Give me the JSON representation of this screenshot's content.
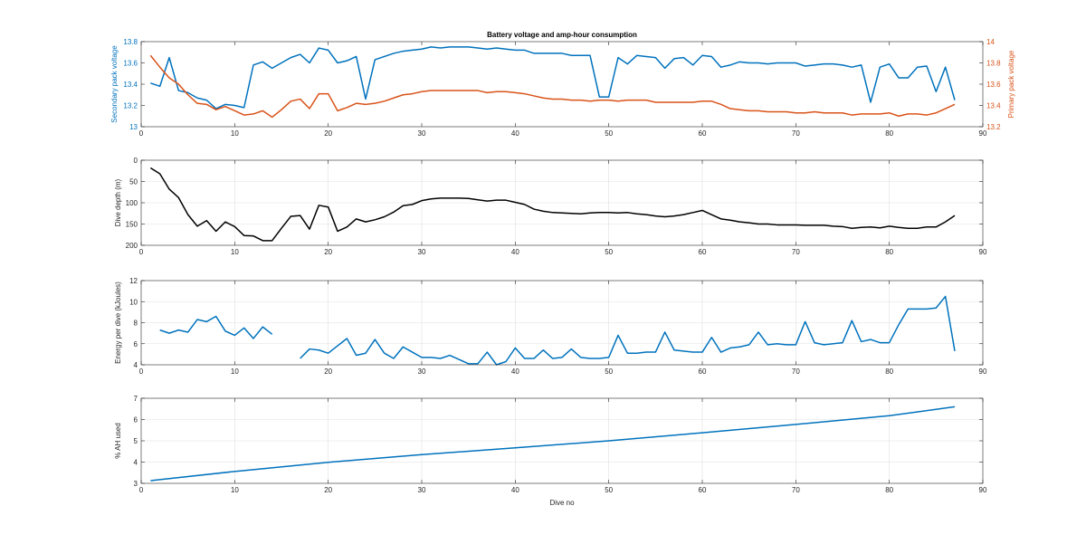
{
  "figure": {
    "title": "Battery voltage and amp-hour consumption",
    "xlabel": "Dive no",
    "colors": {
      "blue": "#0072BD",
      "orange": "#D95319",
      "black": "#000000"
    }
  },
  "chart_data": [
    {
      "type": "line",
      "title": "Battery voltage and amp-hour consumption",
      "xlabel": "",
      "xlim": [
        0,
        90
      ],
      "xticks": [
        0,
        10,
        20,
        30,
        40,
        50,
        60,
        70,
        80,
        90
      ],
      "ylabel": "Secondary pack voltage",
      "ylim": [
        13,
        13.8
      ],
      "yticks": [
        13,
        13.2,
        13.4,
        13.6,
        13.8
      ],
      "ylabel_right": "Primary pack voltage",
      "ylim_right": [
        13.2,
        14
      ],
      "yticks_right": [
        13.2,
        13.4,
        13.6,
        13.8,
        14
      ],
      "grid": false,
      "series": [
        {
          "axis": "left",
          "color": "#0072BD",
          "x": [
            1,
            2,
            3,
            4,
            5,
            6,
            7,
            8,
            9,
            10,
            11,
            12,
            13,
            14,
            15,
            16,
            17,
            18,
            19,
            20,
            21,
            22,
            23,
            24,
            25,
            26,
            27,
            28,
            29,
            30,
            31,
            32,
            33,
            34,
            35,
            36,
            37,
            38,
            39,
            40,
            41,
            42,
            43,
            44,
            45,
            46,
            47,
            48,
            49,
            50,
            51,
            52,
            53,
            54,
            55,
            56,
            57,
            58,
            59,
            60,
            61,
            62,
            63,
            64,
            65,
            66,
            67,
            68,
            69,
            70,
            71,
            72,
            73,
            74,
            75,
            76,
            77,
            78,
            79,
            80,
            81,
            82,
            83,
            84,
            85,
            86,
            87
          ],
          "y": [
            13.41,
            13.38,
            13.65,
            13.34,
            13.32,
            13.27,
            13.25,
            13.17,
            13.21,
            13.2,
            13.18,
            13.58,
            13.61,
            13.55,
            13.6,
            13.65,
            13.68,
            13.6,
            13.74,
            13.72,
            13.6,
            13.62,
            13.66,
            13.26,
            13.63,
            13.66,
            13.69,
            13.71,
            13.72,
            13.73,
            13.75,
            13.74,
            13.75,
            13.75,
            13.75,
            13.74,
            13.73,
            13.74,
            13.73,
            13.72,
            13.72,
            13.69,
            13.69,
            13.69,
            13.69,
            13.67,
            13.67,
            13.67,
            13.28,
            13.28,
            13.65,
            13.59,
            13.67,
            13.66,
            13.65,
            13.55,
            13.64,
            13.65,
            13.58,
            13.67,
            13.66,
            13.56,
            13.58,
            13.61,
            13.6,
            13.6,
            13.59,
            13.6,
            13.6,
            13.6,
            13.57,
            13.58,
            13.59,
            13.59,
            13.58,
            13.56,
            13.58,
            13.23,
            13.56,
            13.59,
            13.46,
            13.46,
            13.56,
            13.57,
            13.33,
            13.56,
            13.25
          ]
        },
        {
          "axis": "right",
          "color": "#D95319",
          "x": [
            1,
            2,
            3,
            4,
            5,
            6,
            7,
            8,
            9,
            10,
            11,
            12,
            13,
            14,
            15,
            16,
            17,
            18,
            19,
            20,
            21,
            22,
            23,
            24,
            25,
            26,
            27,
            28,
            29,
            30,
            31,
            32,
            33,
            34,
            35,
            36,
            37,
            38,
            39,
            40,
            41,
            42,
            43,
            44,
            45,
            46,
            47,
            48,
            49,
            50,
            51,
            52,
            53,
            54,
            55,
            56,
            57,
            58,
            59,
            60,
            61,
            62,
            63,
            64,
            65,
            66,
            67,
            68,
            69,
            70,
            71,
            72,
            73,
            74,
            75,
            76,
            77,
            78,
            79,
            80,
            81,
            82,
            83,
            84,
            85,
            86,
            87
          ],
          "y": [
            13.87,
            13.76,
            13.66,
            13.6,
            13.5,
            13.42,
            13.41,
            13.36,
            13.39,
            13.35,
            13.31,
            13.32,
            13.35,
            13.29,
            13.36,
            13.44,
            13.46,
            13.37,
            13.51,
            13.51,
            13.35,
            13.38,
            13.42,
            13.41,
            13.42,
            13.44,
            13.47,
            13.5,
            13.51,
            13.53,
            13.54,
            13.54,
            13.54,
            13.54,
            13.54,
            13.54,
            13.52,
            13.53,
            13.53,
            13.52,
            13.51,
            13.49,
            13.47,
            13.46,
            13.46,
            13.45,
            13.45,
            13.44,
            13.45,
            13.45,
            13.44,
            13.45,
            13.45,
            13.45,
            13.43,
            13.43,
            13.43,
            13.43,
            13.43,
            13.44,
            13.44,
            13.41,
            13.37,
            13.36,
            13.35,
            13.35,
            13.34,
            13.34,
            13.34,
            13.33,
            13.33,
            13.34,
            13.33,
            13.33,
            13.33,
            13.31,
            13.32,
            13.32,
            13.32,
            13.33,
            13.3,
            13.32,
            13.32,
            13.31,
            13.33,
            13.37,
            13.41
          ]
        }
      ]
    },
    {
      "type": "line",
      "xlim": [
        0,
        90
      ],
      "xticks": [
        0,
        10,
        20,
        30,
        40,
        50,
        60,
        70,
        80,
        90
      ],
      "ylabel": "Dive depth (m)",
      "ylim": [
        0,
        200
      ],
      "yreversed": true,
      "yticks": [
        0,
        50,
        100,
        150,
        200
      ],
      "grid": true,
      "series": [
        {
          "color": "#000000",
          "x": [
            1,
            2,
            3,
            4,
            5,
            6,
            7,
            8,
            9,
            10,
            11,
            12,
            13,
            14,
            15,
            16,
            17,
            18,
            19,
            20,
            21,
            22,
            23,
            24,
            25,
            26,
            27,
            28,
            29,
            30,
            31,
            32,
            33,
            34,
            35,
            36,
            37,
            38,
            39,
            40,
            41,
            42,
            43,
            44,
            45,
            46,
            47,
            48,
            49,
            50,
            51,
            52,
            53,
            54,
            55,
            56,
            57,
            58,
            59,
            60,
            61,
            62,
            63,
            64,
            65,
            66,
            67,
            68,
            69,
            70,
            71,
            72,
            73,
            74,
            75,
            76,
            77,
            78,
            79,
            80,
            81,
            82,
            83,
            84,
            85,
            86,
            87
          ],
          "y": [
            18,
            32,
            68,
            88,
            128,
            155,
            142,
            167,
            145,
            156,
            177,
            178,
            189,
            189,
            160,
            132,
            130,
            162,
            106,
            110,
            167,
            157,
            138,
            145,
            140,
            133,
            122,
            107,
            104,
            95,
            91,
            89,
            89,
            89,
            90,
            93,
            96,
            94,
            94,
            99,
            104,
            115,
            120,
            123,
            124,
            125,
            126,
            124,
            123,
            123,
            124,
            123,
            126,
            128,
            131,
            133,
            131,
            128,
            123,
            118,
            128,
            138,
            141,
            145,
            147,
            150,
            150,
            152,
            152,
            152,
            153,
            153,
            153,
            155,
            156,
            160,
            158,
            157,
            159,
            155,
            158,
            160,
            160,
            157,
            157,
            145,
            130
          ]
        }
      ]
    },
    {
      "type": "line",
      "xlim": [
        0,
        90
      ],
      "xticks": [
        0,
        10,
        20,
        30,
        40,
        50,
        60,
        70,
        80,
        90
      ],
      "ylabel": "Energy per dive (kJoules)",
      "ylim": [
        4,
        12
      ],
      "yticks": [
        4,
        6,
        8,
        10,
        12
      ],
      "grid": true,
      "series": [
        {
          "color": "#0072BD",
          "x": [
            2,
            3,
            4,
            5,
            6,
            7,
            8,
            9,
            10,
            11,
            12,
            13,
            14,
            null,
            17,
            18,
            19,
            20,
            21,
            22,
            23,
            24,
            25,
            26,
            27,
            28,
            29,
            30,
            31,
            32,
            33,
            34,
            35,
            36,
            37,
            38,
            39,
            40,
            41,
            42,
            43,
            44,
            45,
            46,
            47,
            48,
            49,
            50,
            51,
            52,
            53,
            54,
            55,
            56,
            57,
            58,
            59,
            60,
            61,
            62,
            63,
            64,
            65,
            66,
            67,
            68,
            69,
            70,
            71,
            72,
            73,
            74,
            75,
            76,
            77,
            78,
            79,
            80,
            81,
            82,
            83,
            84,
            85,
            86,
            87
          ],
          "y": [
            7.3,
            7.0,
            7.3,
            7.1,
            8.3,
            8.1,
            8.6,
            7.2,
            6.8,
            7.5,
            6.5,
            7.6,
            6.9,
            null,
            4.6,
            5.5,
            5.4,
            5.1,
            5.8,
            6.5,
            4.9,
            5.1,
            6.4,
            5.1,
            4.6,
            5.7,
            5.2,
            4.7,
            4.7,
            4.6,
            4.9,
            4.5,
            4.1,
            4.1,
            5.2,
            4.0,
            4.3,
            5.6,
            4.6,
            4.6,
            5.4,
            4.6,
            4.7,
            5.5,
            4.7,
            4.6,
            4.6,
            4.7,
            6.8,
            5.1,
            5.1,
            5.2,
            5.2,
            7.1,
            5.4,
            5.3,
            5.2,
            5.2,
            6.6,
            5.2,
            5.6,
            5.7,
            5.9,
            7.1,
            5.9,
            6.0,
            5.9,
            5.9,
            8.1,
            6.1,
            5.9,
            6.0,
            6.1,
            8.2,
            6.2,
            6.4,
            6.1,
            6.1,
            7.8,
            9.3,
            9.3,
            9.3,
            9.4,
            10.5,
            5.3
          ]
        }
      ]
    },
    {
      "type": "line",
      "xlim": [
        0,
        90
      ],
      "xticks": [
        0,
        10,
        20,
        30,
        40,
        50,
        60,
        70,
        80,
        90
      ],
      "xlabel": "Dive no",
      "ylabel": "% AH used",
      "ylim": [
        3,
        7
      ],
      "yticks": [
        3,
        4,
        5,
        6,
        7
      ],
      "grid": true,
      "series": [
        {
          "color": "#0072BD",
          "x": [
            1,
            10,
            20,
            30,
            40,
            50,
            60,
            70,
            80,
            87
          ],
          "y": [
            3.13,
            3.56,
            3.99,
            4.35,
            4.67,
            5.0,
            5.38,
            5.77,
            6.18,
            6.6
          ]
        }
      ]
    }
  ]
}
